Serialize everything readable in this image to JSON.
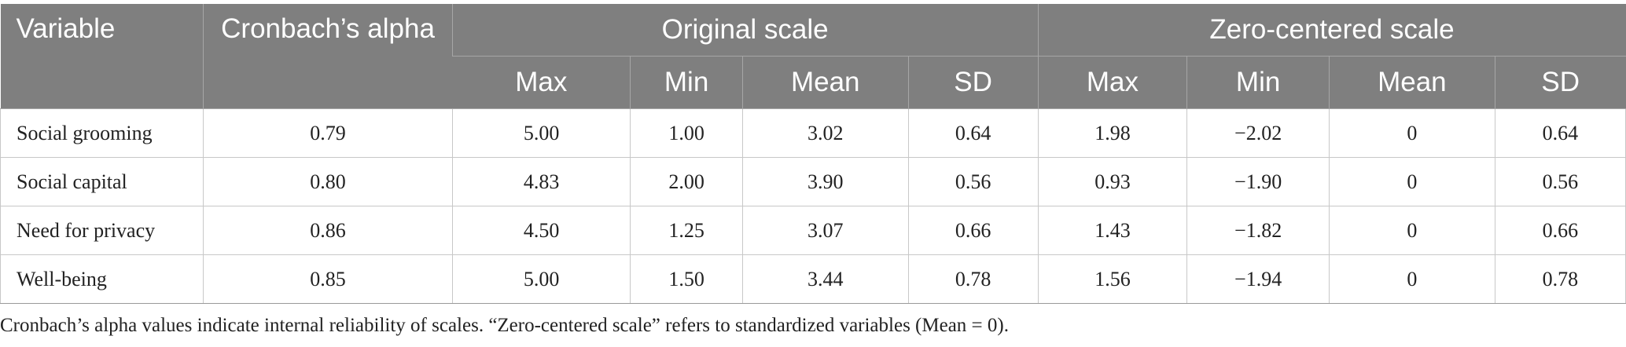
{
  "table": {
    "headers": {
      "variable": "Variable",
      "alpha": "Cronbach’s alpha",
      "original_group": "Original scale",
      "zero_group": "Zero-centered scale",
      "sub": [
        "Max",
        "Min",
        "Mean",
        "SD",
        "Max",
        "Min",
        "Mean",
        "SD"
      ]
    },
    "rows": [
      [
        "Social grooming",
        "0.79",
        "5.00",
        "1.00",
        "3.02",
        "0.64",
        "1.98",
        "−2.02",
        "0",
        "0.64"
      ],
      [
        "Social capital",
        "0.80",
        "4.83",
        "2.00",
        "3.90",
        "0.56",
        "0.93",
        "−1.90",
        "0",
        "0.56"
      ],
      [
        "Need for privacy",
        "0.86",
        "4.50",
        "1.25",
        "3.07",
        "0.66",
        "1.43",
        "−1.82",
        "0",
        "0.66"
      ],
      [
        "Well-being",
        "0.85",
        "5.00",
        "1.50",
        "3.44",
        "0.78",
        "1.56",
        "−1.94",
        "0",
        "0.78"
      ]
    ]
  },
  "footnote": "Cronbach’s alpha values indicate internal reliability of scales. “Zero-centered scale” refers to standardized variables (Mean = 0)."
}
